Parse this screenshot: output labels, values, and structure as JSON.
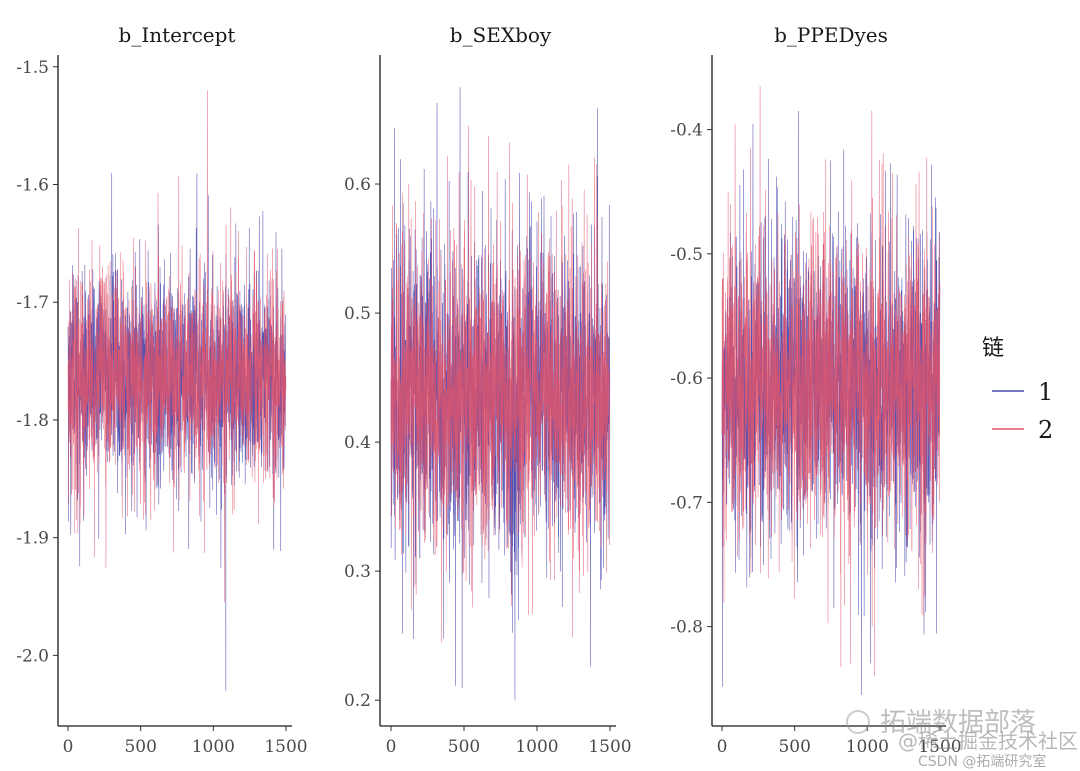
{
  "chart_data": {
    "type": "line",
    "subtype": "mcmc-trace",
    "x_range": [
      0,
      1500
    ],
    "xticks": [
      0,
      500,
      1000,
      1500
    ],
    "tick_labels_x": [
      "0",
      "500",
      "1000",
      "1500"
    ],
    "legend": {
      "title": "链",
      "placement": "right",
      "entries": [
        {
          "label": "1",
          "color": "#4a4ab0"
        },
        {
          "label": "2",
          "color": "#e0536a"
        }
      ]
    },
    "panels": [
      {
        "title": "b_Intercept",
        "ylim": [
          -2.06,
          -1.49
        ],
        "yticks": [
          -1.5,
          -1.6,
          -1.7,
          -1.8,
          -1.9,
          -2.0
        ],
        "tick_labels_y": [
          "-1.5",
          "-1.6",
          "-1.7",
          "-1.8",
          "-1.9",
          "-2.0"
        ],
        "series": [
          {
            "name": "1",
            "mean": -1.765,
            "sd": 0.045,
            "min": -2.03,
            "max": -1.59
          },
          {
            "name": "2",
            "mean": -1.765,
            "sd": 0.045,
            "min": -1.955,
            "max": -1.52
          }
        ]
      },
      {
        "title": "b_SEXboy",
        "ylim": [
          0.18,
          0.7
        ],
        "yticks": [
          0.6,
          0.5,
          0.4,
          0.3,
          0.2
        ],
        "tick_labels_y": [
          "0.6",
          "0.5",
          "0.4",
          "0.3",
          "0.2"
        ],
        "series": [
          {
            "name": "1",
            "mean": 0.435,
            "sd": 0.06,
            "min": 0.2,
            "max": 0.675
          },
          {
            "name": "2",
            "mean": 0.435,
            "sd": 0.06,
            "min": 0.245,
            "max": 0.645
          }
        ]
      },
      {
        "title": "b_PPEDyes",
        "ylim": [
          -0.88,
          -0.34
        ],
        "yticks": [
          -0.4,
          -0.5,
          -0.6,
          -0.7,
          -0.8
        ],
        "tick_labels_y": [
          "-0.4",
          "-0.5",
          "-0.6",
          "-0.7",
          "-0.8"
        ],
        "series": [
          {
            "name": "1",
            "mean": -0.605,
            "sd": 0.06,
            "min": -0.855,
            "max": -0.385
          },
          {
            "name": "2",
            "mean": -0.605,
            "sd": 0.06,
            "min": -0.84,
            "max": -0.365
          }
        ]
      }
    ]
  },
  "watermark": {
    "line1": "拓端数据部落",
    "line2": "@稀土掘金技术社区",
    "line3": "CSDN @拓端研究室"
  }
}
